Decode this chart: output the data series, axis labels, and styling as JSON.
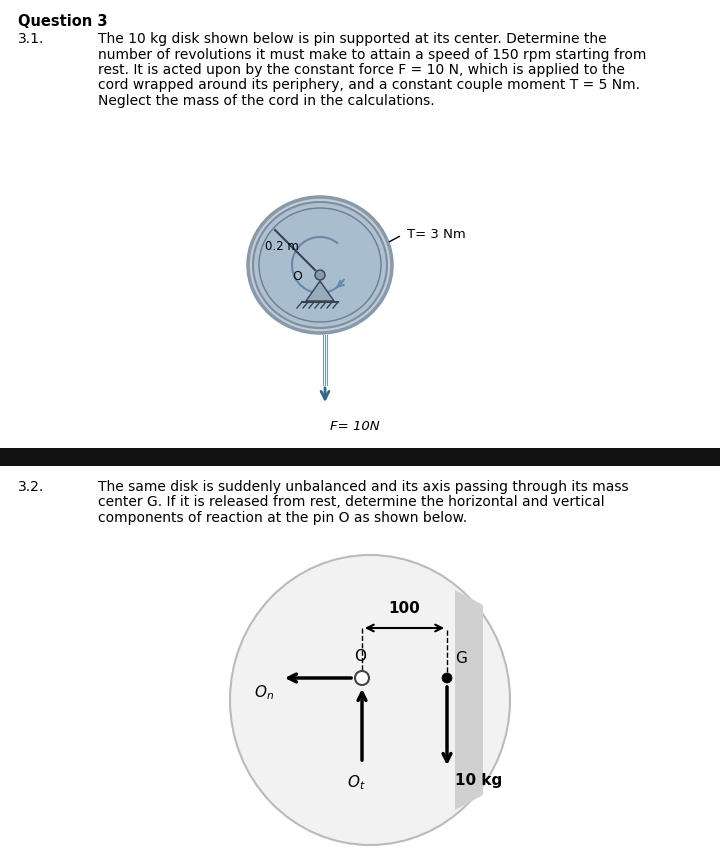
{
  "bg_color": "#ffffff",
  "divider_color": "#111111",
  "q_title": "Question 3",
  "s1_num": "3.1.",
  "s1_text_line1": "The 10 kg disk shown below is pin supported at its center. Determine the",
  "s1_text_line2": "number of revolutions it must make to attain a speed of 150 rpm starting from",
  "s1_text_line3": "rest. It is acted upon by the constant force F = 10 N, which is applied to the",
  "s1_text_line4": "cord wrapped around its periphery, and a constant couple moment T = 5 Nm.",
  "s1_text_line5": "Neglect the mass of the cord in the calculations.",
  "s2_num": "3.2.",
  "s2_text_line1": "The same disk is suddenly unbalanced and its axis passing through its mass",
  "s2_text_line2": "center G. If it is released from rest, determine the horizontal and vertical",
  "s2_text_line3": "components of reaction at the pin O as shown below.",
  "disk1_color_outer": "#c8d4e0",
  "disk1_color_inner": "#b8c8d8",
  "disk1_color_ring": "#a0b0c0",
  "disk2_color": "#f0f0f0",
  "disk2_shade": "#d8d8d8",
  "font_body": 10.0,
  "font_title": 10.5
}
